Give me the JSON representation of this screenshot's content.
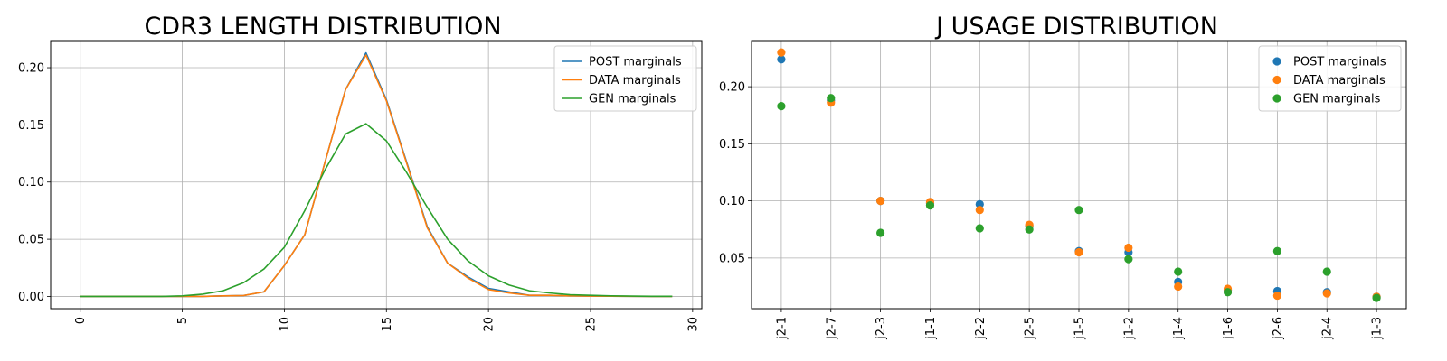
{
  "colors": {
    "post": "#1f77b4",
    "data": "#ff7f0e",
    "gen": "#2ca02c",
    "grid": "#b0b0b0"
  },
  "chart_data": [
    {
      "type": "line",
      "title": "CDR3 LENGTH DISTRIBUTION",
      "xlabel": "",
      "ylabel": "",
      "x": [
        0,
        1,
        2,
        3,
        4,
        5,
        6,
        7,
        8,
        9,
        10,
        11,
        12,
        13,
        14,
        15,
        16,
        17,
        18,
        19,
        20,
        21,
        22,
        23,
        24,
        25,
        26,
        27,
        28,
        29
      ],
      "xlim": [
        -1.45,
        30.45
      ],
      "ylim": [
        -0.0107,
        0.2237
      ],
      "xticks": [
        0,
        5,
        10,
        15,
        20,
        25,
        30
      ],
      "xtick_labels": [
        "0",
        "5",
        "10",
        "15",
        "20",
        "25",
        "30"
      ],
      "yticks": [
        0.0,
        0.05,
        0.1,
        0.15,
        0.2
      ],
      "ytick_labels": [
        "0.00",
        "0.05",
        "0.10",
        "0.15",
        "0.20"
      ],
      "grid": true,
      "legend_position": "top-right",
      "series": [
        {
          "name": "POST marginals",
          "color": "#1f77b4",
          "values": [
            0,
            0,
            0,
            0,
            0,
            0,
            0,
            0.0005,
            0.0008,
            0.004,
            0.027,
            0.054,
            0.118,
            0.181,
            0.213,
            0.172,
            0.117,
            0.061,
            0.029,
            0.017,
            0.007,
            0.004,
            0.001,
            0.001,
            0.0005,
            0.0003,
            0.0002,
            0.0001,
            0,
            0
          ]
        },
        {
          "name": "DATA marginals",
          "color": "#ff7f0e",
          "values": [
            0,
            0,
            0,
            0,
            0,
            0,
            0,
            0.0005,
            0.0008,
            0.004,
            0.027,
            0.054,
            0.118,
            0.181,
            0.211,
            0.171,
            0.116,
            0.06,
            0.029,
            0.016,
            0.006,
            0.003,
            0.001,
            0.001,
            0.0005,
            0.0003,
            0.0002,
            0.0001,
            0,
            0
          ]
        },
        {
          "name": "GEN marginals",
          "color": "#2ca02c",
          "values": [
            0,
            0,
            0,
            0,
            0,
            0.0005,
            0.002,
            0.005,
            0.012,
            0.024,
            0.043,
            0.075,
            0.111,
            0.142,
            0.151,
            0.136,
            0.108,
            0.078,
            0.05,
            0.031,
            0.018,
            0.01,
            0.005,
            0.003,
            0.0015,
            0.001,
            0.0005,
            0.0003,
            0.0001,
            0.0001
          ]
        }
      ]
    },
    {
      "type": "scatter",
      "title": "J USAGE DISTRIBUTION",
      "xlabel": "",
      "ylabel": "",
      "categories": [
        "j2-1",
        "j2-7",
        "j2-3",
        "j1-1",
        "j2-2",
        "j2-5",
        "j1-5",
        "j1-2",
        "j1-4",
        "j1-6",
        "j2-6",
        "j2-4",
        "j1-3"
      ],
      "xlim": [
        -0.6,
        12.6
      ],
      "ylim": [
        0.0056,
        0.2404
      ],
      "yticks": [
        0.05,
        0.1,
        0.15,
        0.2
      ],
      "ytick_labels": [
        "0.05",
        "0.10",
        "0.15",
        "0.20"
      ],
      "grid": true,
      "legend_position": "top-right",
      "series": [
        {
          "name": "POST marginals",
          "color": "#1f77b4",
          "values": [
            0.224,
            0.188,
            0.1,
            0.098,
            0.097,
            0.078,
            0.056,
            0.055,
            0.029,
            0.022,
            0.021,
            0.02,
            0.016
          ]
        },
        {
          "name": "DATA marginals",
          "color": "#ff7f0e",
          "values": [
            0.23,
            0.186,
            0.1,
            0.099,
            0.092,
            0.079,
            0.055,
            0.059,
            0.025,
            0.023,
            0.017,
            0.019,
            0.016
          ]
        },
        {
          "name": "GEN marginals",
          "color": "#2ca02c",
          "values": [
            0.183,
            0.19,
            0.072,
            0.096,
            0.076,
            0.075,
            0.092,
            0.049,
            0.038,
            0.02,
            0.056,
            0.038,
            0.015
          ]
        }
      ]
    }
  ]
}
